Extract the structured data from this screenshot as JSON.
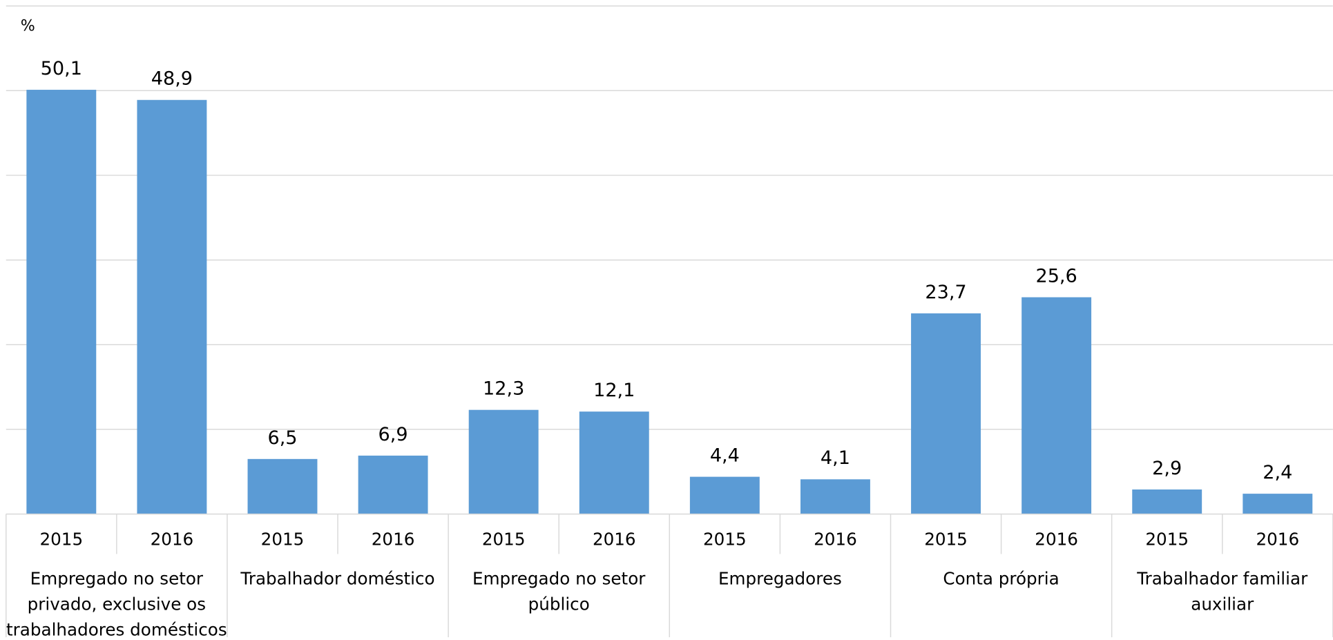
{
  "chart_data": {
    "type": "bar",
    "y_label": "%",
    "categories": [
      "2015",
      "2016",
      "2015",
      "2016",
      "2015",
      "2016",
      "2015",
      "2016",
      "2015",
      "2016",
      "2015",
      "2016"
    ],
    "groups": [
      "Empregado no setor privado, exclusive os trabalhadores domésticos",
      "Trabalhador doméstico",
      "Empregado no setor público",
      "Empregadores",
      "Conta própria",
      "Trabalhador familiar auxiliar"
    ],
    "values": [
      50.1,
      48.9,
      6.5,
      6.9,
      12.3,
      12.1,
      4.4,
      4.1,
      23.7,
      25.6,
      2.9,
      2.4
    ],
    "value_labels": [
      "50,1",
      "48,9",
      "6,5",
      "6,9",
      "12,3",
      "12,1",
      "4,4",
      "4,1",
      "23,7",
      "25,6",
      "2,9",
      "2,4"
    ],
    "color": "#5b9bd5",
    "ylim": [
      0,
      60
    ],
    "yticks": [
      0,
      10,
      20,
      30,
      40,
      50,
      60
    ],
    "grid": true
  }
}
